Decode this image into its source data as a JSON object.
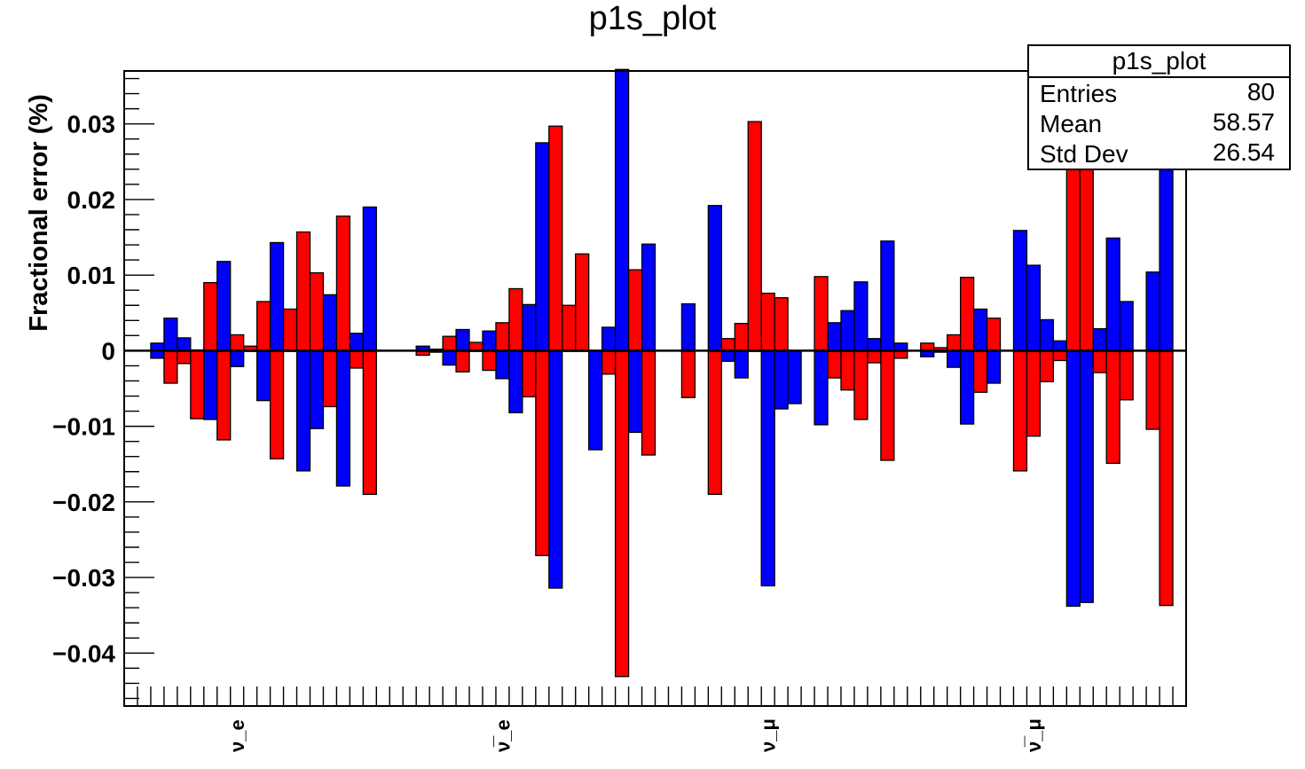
{
  "chart_data": {
    "type": "bar",
    "title": "p1s_plot",
    "xlabel": "",
    "ylabel": "Fractional error  (%)",
    "ylim": [
      -0.047,
      0.037
    ],
    "yticks": [
      0.03,
      0.02,
      0.01,
      0,
      -0.01,
      -0.02,
      -0.03,
      -0.04
    ],
    "ytick_labels": [
      "0.03",
      "0.02",
      "0.01",
      "0",
      "−0.01",
      "−0.02",
      "−0.03",
      "−0.04"
    ],
    "x_range": [
      0,
      80
    ],
    "categories": [
      "ν_e",
      "ν̅_e",
      "ν_μ",
      "ν̅_μ"
    ],
    "category_centers": [
      8.5,
      28.5,
      48.5,
      68.5
    ],
    "series": [
      {
        "color": "#0000ff",
        "bins": [
          [
            2,
            0.001,
            -0.001
          ],
          [
            3,
            0.0043,
            -0.0001
          ],
          [
            4,
            0.0017,
            -0.0001
          ],
          [
            6,
            0.0004,
            -0.0091
          ],
          [
            7,
            0.0118,
            -0.0001
          ],
          [
            8,
            -0.0001,
            -0.0021
          ],
          [
            10,
            -0.0001,
            -0.0066
          ],
          [
            11,
            0.0143,
            -0.0001
          ],
          [
            13,
            -0.0001,
            -0.0159
          ],
          [
            14,
            -0.0001,
            -0.0103
          ],
          [
            15,
            0.0074,
            -0.0001
          ],
          [
            16,
            -0.0001,
            -0.0179
          ],
          [
            17,
            0.0023,
            -0.0001
          ],
          [
            18,
            0.019,
            -0.0001
          ],
          [
            22,
            0.0006,
            -0.0001
          ],
          [
            24,
            -0.0001,
            -0.0019
          ],
          [
            25,
            0.0028,
            -0.0001
          ],
          [
            27,
            0.0026,
            -0.0001
          ],
          [
            28,
            -0.0001,
            -0.0037
          ],
          [
            29,
            -0.0001,
            -0.0082
          ],
          [
            30,
            0.0061,
            -0.0001
          ],
          [
            31,
            0.0275,
            -0.0001
          ],
          [
            32,
            -0.0001,
            -0.0314
          ],
          [
            35,
            -0.0001,
            -0.0131
          ],
          [
            36,
            0.0031,
            -0.0001
          ],
          [
            37,
            0.0372,
            -0.0001
          ],
          [
            38,
            -0.0001,
            -0.0108
          ],
          [
            39,
            0.0141,
            -0.0001
          ],
          [
            42,
            0.0062,
            -0.0001
          ],
          [
            44,
            0.0192,
            -0.0001
          ],
          [
            45,
            -0.0001,
            -0.0014
          ],
          [
            46,
            -0.0001,
            -0.0036
          ],
          [
            48,
            -0.0001,
            -0.0311
          ],
          [
            49,
            -0.0001,
            -0.0077
          ],
          [
            50,
            -0.0001,
            -0.007
          ],
          [
            52,
            -0.0001,
            -0.0098
          ],
          [
            53,
            0.0037,
            -0.0001
          ],
          [
            54,
            0.0053,
            -0.0001
          ],
          [
            55,
            0.0091,
            -0.0001
          ],
          [
            56,
            0.0016,
            -0.0001
          ],
          [
            57,
            0.0145,
            -0.0001
          ],
          [
            58,
            0.001,
            -0.0001
          ],
          [
            60,
            -0.0001,
            -0.0008
          ],
          [
            61,
            -0.0001,
            -0.0002
          ],
          [
            62,
            -0.0001,
            -0.0022
          ],
          [
            63,
            -0.0001,
            -0.0097
          ],
          [
            64,
            0.0055,
            -0.0001
          ],
          [
            65,
            -0.0001,
            -0.0043
          ],
          [
            67,
            0.0159,
            -0.0001
          ],
          [
            68,
            0.0113,
            -0.0001
          ],
          [
            69,
            0.0041,
            -0.0001
          ],
          [
            70,
            0.0013,
            -0.0001
          ],
          [
            71,
            -0.0001,
            -0.0338
          ],
          [
            72,
            -0.0001,
            -0.0333
          ],
          [
            73,
            0.0029,
            -0.0001
          ],
          [
            74,
            0.0149,
            -0.0001
          ],
          [
            75,
            0.0065,
            -0.0001
          ],
          [
            77,
            0.0104,
            -0.0001
          ],
          [
            78,
            0.0337,
            -0.0001
          ]
        ]
      },
      {
        "color": "#ff0000",
        "bins": [
          [
            3,
            -0.0001,
            -0.0043
          ],
          [
            4,
            -0.0001,
            -0.0017
          ],
          [
            5,
            0.0001,
            -0.009
          ],
          [
            6,
            0.009,
            -0.0001
          ],
          [
            7,
            -0.0001,
            -0.0118
          ],
          [
            8,
            0.0021,
            -0.0001
          ],
          [
            9,
            0.0006,
            -0.0001
          ],
          [
            10,
            0.0065,
            -0.0001
          ],
          [
            11,
            -0.0001,
            -0.0143
          ],
          [
            12,
            0.0055,
            -0.0001
          ],
          [
            13,
            0.0157,
            -0.0001
          ],
          [
            14,
            0.0103,
            -0.0001
          ],
          [
            15,
            -0.0001,
            -0.0074
          ],
          [
            16,
            0.0178,
            -0.0001
          ],
          [
            17,
            -0.0001,
            -0.0023
          ],
          [
            18,
            -0.0001,
            -0.019
          ],
          [
            22,
            -0.0001,
            -0.0006
          ],
          [
            23,
            0.0002,
            -0.0002
          ],
          [
            24,
            0.0019,
            -0.0001
          ],
          [
            25,
            -0.0001,
            -0.0028
          ],
          [
            26,
            0.0011,
            -0.0001
          ],
          [
            27,
            -0.0001,
            -0.0026
          ],
          [
            28,
            0.0037,
            -0.0001
          ],
          [
            29,
            0.0082,
            -0.0001
          ],
          [
            30,
            -0.0001,
            -0.0061
          ],
          [
            31,
            -0.0001,
            -0.0271
          ],
          [
            32,
            0.0297,
            -0.0001
          ],
          [
            33,
            0.006,
            -0.0001
          ],
          [
            34,
            0.0128,
            -0.0001
          ],
          [
            36,
            -0.0001,
            -0.0031
          ],
          [
            37,
            -0.0001,
            -0.0431
          ],
          [
            38,
            0.0107,
            -0.0001
          ],
          [
            39,
            -0.0001,
            -0.0138
          ],
          [
            42,
            -0.0001,
            -0.0062
          ],
          [
            44,
            -0.0001,
            -0.019
          ],
          [
            45,
            0.0016,
            -0.0001
          ],
          [
            46,
            0.0036,
            -0.0001
          ],
          [
            47,
            0.0303,
            -0.0001
          ],
          [
            48,
            0.0076,
            -0.0001
          ],
          [
            49,
            0.007,
            -0.0001
          ],
          [
            52,
            0.0098,
            -0.0001
          ],
          [
            53,
            -0.0001,
            -0.0036
          ],
          [
            54,
            -0.0001,
            -0.0052
          ],
          [
            55,
            -0.0001,
            -0.0091
          ],
          [
            56,
            -0.0001,
            -0.0016
          ],
          [
            57,
            -0.0001,
            -0.0145
          ],
          [
            58,
            -0.0001,
            -0.001
          ],
          [
            60,
            0.001,
            -0.0001
          ],
          [
            61,
            0.0004,
            -0.0001
          ],
          [
            62,
            0.0021,
            -0.0001
          ],
          [
            63,
            0.0097,
            -0.0001
          ],
          [
            64,
            -0.0001,
            -0.0055
          ],
          [
            65,
            0.0043,
            -0.0001
          ],
          [
            67,
            -0.0001,
            -0.0159
          ],
          [
            68,
            -0.0001,
            -0.0113
          ],
          [
            69,
            -0.0001,
            -0.0041
          ],
          [
            70,
            -0.0001,
            -0.0013
          ],
          [
            71,
            0.028,
            -0.0001
          ],
          [
            72,
            0.024,
            -0.0001
          ],
          [
            73,
            -0.0001,
            -0.0029
          ],
          [
            74,
            -0.0001,
            -0.0149
          ],
          [
            75,
            -0.0001,
            -0.0065
          ],
          [
            77,
            -0.0001,
            -0.0104
          ],
          [
            78,
            -0.0001,
            -0.0337
          ]
        ]
      }
    ],
    "legend": {
      "title": "p1s_plot",
      "rows": [
        {
          "name": "Entries",
          "value": "80"
        },
        {
          "name": "Mean",
          "value": "58.57"
        },
        {
          "name": "Std Dev",
          "value": "26.54"
        }
      ]
    }
  }
}
